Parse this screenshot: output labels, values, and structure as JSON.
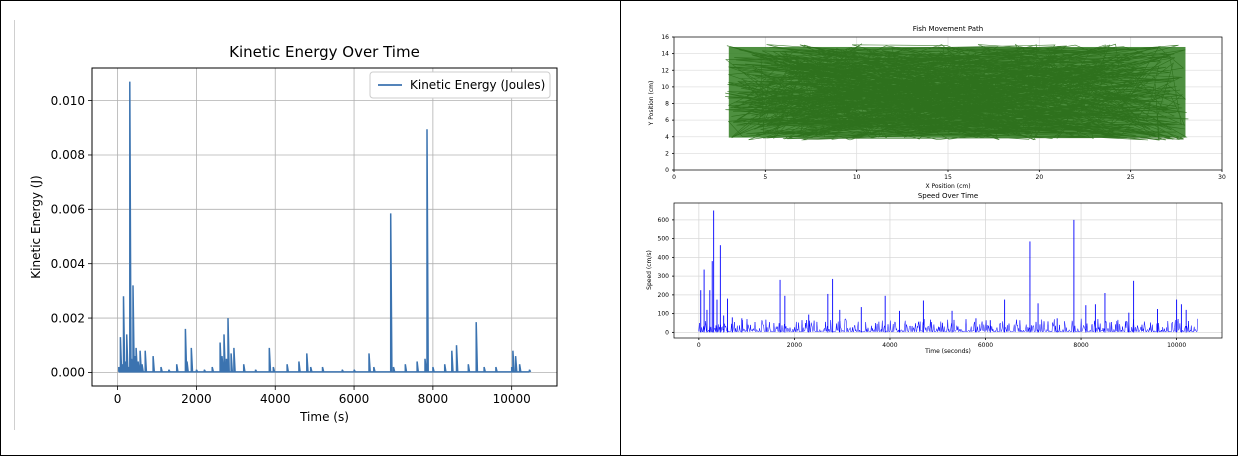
{
  "chart_data": [
    {
      "type": "line",
      "title": "Kinetic Energy Over Time",
      "xlabel": "Time (s)",
      "ylabel": "Kinetic Energy (J)",
      "xlim": [
        -650,
        11150
      ],
      "ylim": [
        -0.0005,
        0.0112
      ],
      "xticks": [
        0,
        2000,
        4000,
        6000,
        8000,
        10000
      ],
      "xtick_labels": [
        "0",
        "2000",
        "4000",
        "6000",
        "8000",
        "10000"
      ],
      "yticks": [
        0.0,
        0.002,
        0.004,
        0.006,
        0.008,
        0.01
      ],
      "ytick_labels": [
        "0.000",
        "0.002",
        "0.004",
        "0.006",
        "0.008",
        "0.010"
      ],
      "grid": true,
      "legend": "top-right",
      "color": "#3b73b0",
      "series": [
        {
          "name": "Kinetic Energy (Joules)",
          "x": [
            30,
            70,
            110,
            150,
            190,
            230,
            270,
            310,
            350,
            390,
            430,
            470,
            520,
            570,
            620,
            700,
            900,
            1100,
            1300,
            1500,
            1720,
            1760,
            1870,
            2000,
            2200,
            2400,
            2600,
            2650,
            2700,
            2760,
            2800,
            2880,
            2950,
            3200,
            3500,
            3850,
            3950,
            4300,
            4600,
            4800,
            4900,
            5200,
            5700,
            6000,
            6380,
            6500,
            6930,
            7000,
            7300,
            7600,
            7800,
            7850,
            8000,
            8300,
            8480,
            8600,
            8900,
            9100,
            9300,
            9600,
            10000,
            10030,
            10100,
            10200,
            10450
          ],
          "y": [
            0.0002,
            0.0013,
            0.0003,
            0.0028,
            0.0004,
            0.0014,
            0.0002,
            0.0107,
            0.0005,
            0.0032,
            0.0006,
            0.0009,
            0.0004,
            0.0008,
            0.0003,
            0.0008,
            0.0006,
            0.0002,
            0.0001,
            0.0003,
            0.0016,
            0.0004,
            0.0009,
            0.0001,
            0.0001,
            0.0002,
            0.0011,
            0.0006,
            0.0014,
            0.0005,
            0.002,
            0.0007,
            0.0009,
            0.0003,
            0.0001,
            0.0009,
            0.0002,
            0.0003,
            0.0004,
            0.0007,
            0.0002,
            0.0002,
            0.0001,
            0.0001,
            0.0007,
            0.0002,
            0.00585,
            0.0002,
            0.0003,
            0.0004,
            0.0005,
            0.00895,
            0.0002,
            0.0003,
            0.0008,
            0.001,
            0.0003,
            0.00185,
            0.0002,
            0.0002,
            0.0002,
            0.0008,
            0.0006,
            0.0003,
            0.0001
          ]
        }
      ]
    },
    {
      "type": "line",
      "title": "Fish Movement Path",
      "xlabel": "X Position (cm)",
      "ylabel": "Y Position (cm)",
      "xlim": [
        0,
        30
      ],
      "ylim": [
        0,
        16
      ],
      "xticks": [
        0,
        5,
        10,
        15,
        20,
        25,
        30
      ],
      "xtick_labels": [
        "0",
        "5",
        "10",
        "15",
        "20",
        "25",
        "30"
      ],
      "yticks": [
        0,
        2,
        4,
        6,
        8,
        10,
        12,
        14,
        16
      ],
      "ytick_labels": [
        "0",
        "2",
        "4",
        "6",
        "8",
        "10",
        "12",
        "14",
        "16"
      ],
      "grid": true,
      "color": "#2f7d1f",
      "region": {
        "x": [
          2.8,
          28.2
        ],
        "y": [
          3.6,
          15.2
        ]
      }
    },
    {
      "type": "line",
      "title": "Speed Over Time",
      "xlabel": "Time (seconds)",
      "ylabel": "Speed (cm/s)",
      "xlim": [
        -520,
        10950
      ],
      "ylim": [
        -30,
        690
      ],
      "xticks": [
        0,
        2000,
        4000,
        6000,
        8000,
        10000
      ],
      "xtick_labels": [
        "0",
        "2000",
        "4000",
        "6000",
        "8000",
        "10000"
      ],
      "yticks": [
        0,
        100,
        200,
        300,
        400,
        500,
        600
      ],
      "ytick_labels": [
        "0",
        "100",
        "200",
        "300",
        "400",
        "500",
        "600"
      ],
      "grid": true,
      "color": "#0000ff",
      "peaks": {
        "x": [
          40,
          110,
          170,
          230,
          280,
          310,
          380,
          450,
          520,
          600,
          700,
          900,
          1700,
          1800,
          2300,
          2700,
          2800,
          2950,
          3400,
          3900,
          4200,
          4700,
          5300,
          5800,
          6100,
          6400,
          6930,
          7100,
          7500,
          7850,
          8100,
          8300,
          8500,
          9000,
          9100,
          9600,
          10000,
          10100,
          10200
        ],
        "y": [
          225,
          335,
          120,
          225,
          380,
          650,
          175,
          465,
          90,
          180,
          80,
          75,
          280,
          195,
          95,
          205,
          285,
          120,
          135,
          195,
          115,
          170,
          115,
          75,
          65,
          175,
          485,
          155,
          75,
          600,
          145,
          150,
          210,
          105,
          275,
          125,
          175,
          150,
          120
        ]
      }
    }
  ]
}
